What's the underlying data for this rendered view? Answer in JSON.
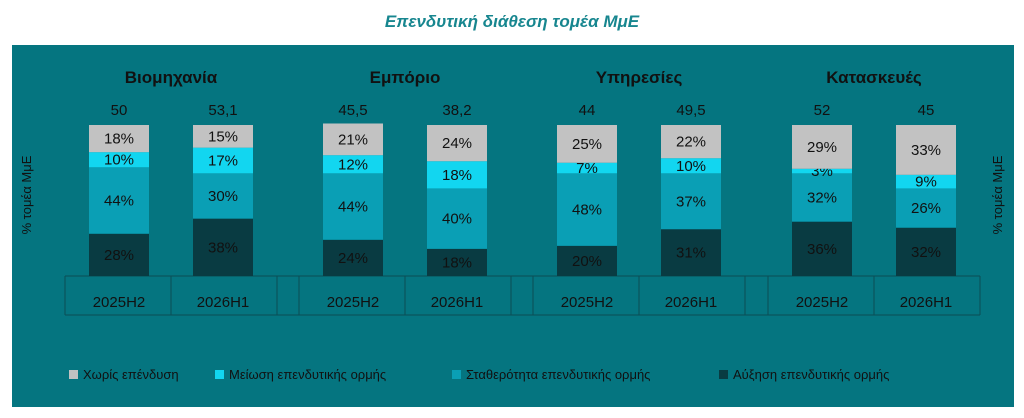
{
  "title": "Επενδυτική διάθεση τομέα ΜμΕ",
  "y_axis_label": "% τομέα ΜμΕ",
  "colors": {
    "background": "#057580",
    "no_investment": "#c2c2c2",
    "decrease": "#12d6f0",
    "stability": "#0a9fb5",
    "increase": "#093b42",
    "text": "#111111",
    "grid": "#0b4d55"
  },
  "chart_data": {
    "type": "bar",
    "stacked": true,
    "normalized": true,
    "ylim": [
      0,
      100
    ],
    "legend_position": "bottom",
    "series": [
      {
        "name": "Χωρίς επένδυση",
        "color": "#c2c2c2",
        "values": [
          18,
          15,
          21,
          24,
          25,
          22,
          29,
          33
        ]
      },
      {
        "name": "Μείωση επενδυτικής ορμής",
        "color": "#12d6f0",
        "values": [
          10,
          17,
          12,
          18,
          7,
          10,
          3,
          9
        ]
      },
      {
        "name": "Σταθερότητα επενδυτικής ορμής",
        "color": "#0a9fb5",
        "values": [
          44,
          30,
          44,
          40,
          48,
          37,
          32,
          26
        ]
      },
      {
        "name": "Αύξηση επενδυτικής ορμής",
        "color": "#093b42",
        "values": [
          28,
          38,
          24,
          18,
          20,
          31,
          36,
          32
        ]
      }
    ],
    "stack_order_bottom_to_top": [
      3,
      2,
      1,
      0
    ],
    "groups": [
      {
        "name": "Βιομηχανία",
        "categories": [
          "2025H2",
          "2026H1"
        ],
        "totals": [
          "50",
          "53,1"
        ]
      },
      {
        "name": "Εμπόριο",
        "categories": [
          "2025H2",
          "2026H1"
        ],
        "totals": [
          "45,5",
          "38,2"
        ]
      },
      {
        "name": "Υπηρεσίες",
        "categories": [
          "2025H2",
          "2026H1"
        ],
        "totals": [
          "44",
          "49,5"
        ]
      },
      {
        "name": "Κατασκευές",
        "categories": [
          "2025H2",
          "2026H1"
        ],
        "totals": [
          "52",
          "45"
        ]
      }
    ]
  }
}
